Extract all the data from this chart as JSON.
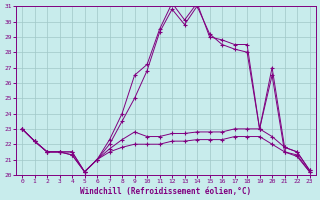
{
  "xlabel": "Windchill (Refroidissement éolien,°C)",
  "background_color": "#c8ecec",
  "line_color": "#800080",
  "grid_color": "#a0c8c8",
  "xlim": [
    -0.5,
    23.5
  ],
  "ylim": [
    20,
    31
  ],
  "xticks": [
    0,
    1,
    2,
    3,
    4,
    5,
    6,
    7,
    8,
    9,
    10,
    11,
    12,
    13,
    14,
    15,
    16,
    17,
    18,
    19,
    20,
    21,
    22,
    23
  ],
  "yticks": [
    20,
    21,
    22,
    23,
    24,
    25,
    26,
    27,
    28,
    29,
    30,
    31
  ],
  "line1_x": [
    0,
    1,
    2,
    3,
    4,
    5,
    6,
    7,
    8,
    9,
    10,
    11,
    12,
    13,
    14,
    15,
    16,
    17,
    18,
    19,
    20,
    21,
    22,
    23
  ],
  "line1_y": [
    23.0,
    22.2,
    21.5,
    21.5,
    21.5,
    20.2,
    21.0,
    22.3,
    24.0,
    26.5,
    27.2,
    29.5,
    31.2,
    30.1,
    31.2,
    29.0,
    28.8,
    28.5,
    28.5,
    23.0,
    27.0,
    21.8,
    21.5,
    20.3
  ],
  "line2_x": [
    0,
    1,
    2,
    3,
    4,
    5,
    6,
    7,
    8,
    9,
    10,
    11,
    12,
    13,
    14,
    15,
    16,
    17,
    18,
    19,
    20,
    21,
    22,
    23
  ],
  "line2_y": [
    23.0,
    22.2,
    21.5,
    21.5,
    21.5,
    20.2,
    21.0,
    22.0,
    23.5,
    25.0,
    26.8,
    29.3,
    30.8,
    29.8,
    31.0,
    29.2,
    28.5,
    28.2,
    28.0,
    23.0,
    26.5,
    21.5,
    21.3,
    20.2
  ],
  "line3_x": [
    0,
    1,
    2,
    3,
    4,
    5,
    6,
    7,
    8,
    9,
    10,
    11,
    12,
    13,
    14,
    15,
    16,
    17,
    18,
    19,
    20,
    21,
    22,
    23
  ],
  "line3_y": [
    23.0,
    22.2,
    21.5,
    21.5,
    21.3,
    20.2,
    21.0,
    21.7,
    22.3,
    22.8,
    22.5,
    22.5,
    22.7,
    22.7,
    22.8,
    22.8,
    22.8,
    23.0,
    23.0,
    23.0,
    22.5,
    21.8,
    21.5,
    20.3
  ],
  "line4_x": [
    0,
    1,
    2,
    3,
    4,
    5,
    6,
    7,
    8,
    9,
    10,
    11,
    12,
    13,
    14,
    15,
    16,
    17,
    18,
    19,
    20,
    21,
    22,
    23
  ],
  "line4_y": [
    23.0,
    22.2,
    21.5,
    21.5,
    21.3,
    20.2,
    21.0,
    21.5,
    21.8,
    22.0,
    22.0,
    22.0,
    22.2,
    22.2,
    22.3,
    22.3,
    22.3,
    22.5,
    22.5,
    22.5,
    22.0,
    21.5,
    21.2,
    20.2
  ]
}
